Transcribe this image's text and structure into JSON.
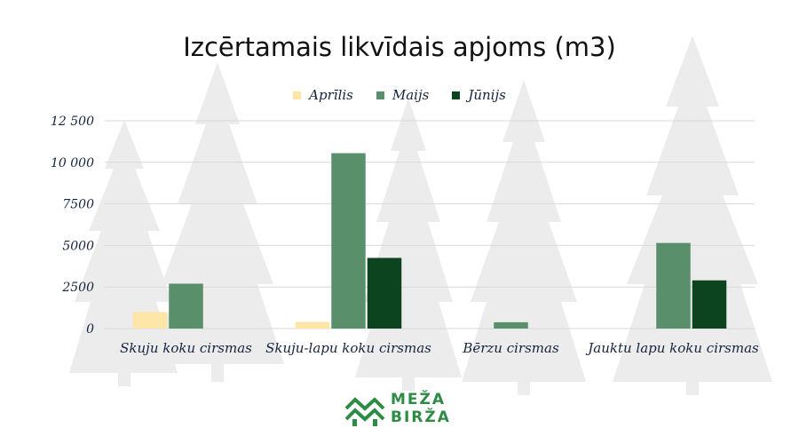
{
  "chart_data": {
    "type": "bar",
    "title": "Izcērtamais likvīdais apjoms (m3)",
    "categories": [
      "Skuju koku cirsmas",
      "Skuju-lapu koku cirsmas",
      "Bērzu cirsmas",
      "Jauktu lapu koku cirsmas"
    ],
    "series": [
      {
        "name": "Aprīlis",
        "color": "#fde6a8",
        "values": [
          1000,
          400,
          0,
          0
        ]
      },
      {
        "name": "Maijs",
        "color": "#5a8f6c",
        "values": [
          2700,
          10550,
          380,
          5150
        ]
      },
      {
        "name": "Jūnijs",
        "color": "#0d4420",
        "values": [
          0,
          4250,
          0,
          2900
        ]
      }
    ],
    "ylim": [
      0,
      12500
    ],
    "yticks": [
      0,
      2500,
      5000,
      7500,
      10000,
      12500
    ],
    "ytick_labels": [
      "0",
      "2500",
      "5000",
      "7500",
      "10 000",
      "12 500"
    ],
    "grid": true,
    "legend_position": "top-center"
  },
  "logo": {
    "line1": "MEŽA",
    "line2": "BIRŽA",
    "color": "#2e8b45"
  }
}
